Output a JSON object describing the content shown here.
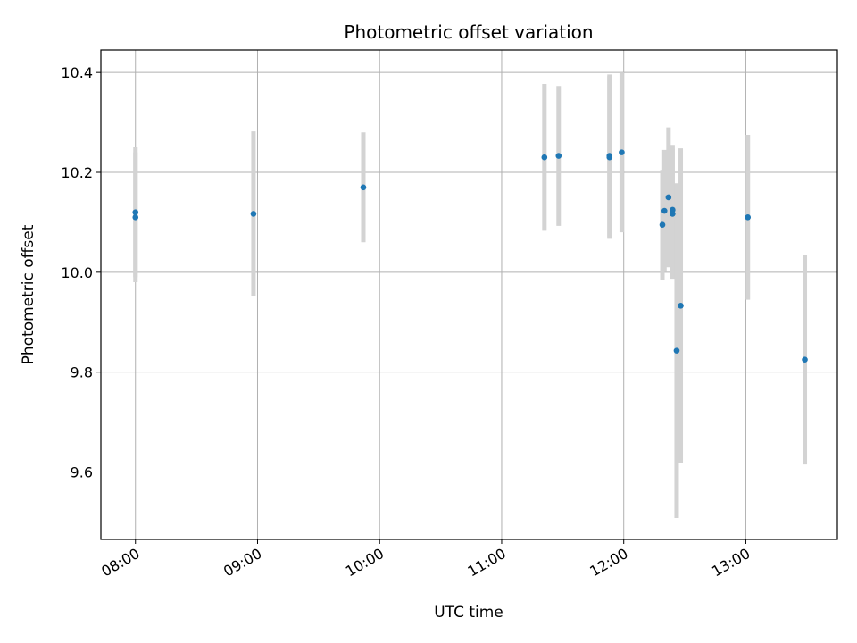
{
  "chart_data": {
    "type": "scatter",
    "title": "Photometric offset variation",
    "xlabel": "UTC time",
    "ylabel": "Photometric offset",
    "x_unit": "time (HH:MM UTC)",
    "xlim": [
      "07:43",
      "13:45"
    ],
    "ylim": [
      9.465,
      10.445
    ],
    "xticks": [
      "08:00",
      "09:00",
      "10:00",
      "11:00",
      "12:00",
      "13:00"
    ],
    "yticks": [
      "9.6",
      "9.8",
      "10.0",
      "10.2",
      "10.4"
    ],
    "grid": true,
    "legend": "none",
    "point_color": "#1f77b4",
    "errorbar_color": "#d3d3d3",
    "series": [
      {
        "points": [
          {
            "x": "08:00",
            "y": 10.12,
            "err": 0.13
          },
          {
            "x": "08:00",
            "y": 10.11,
            "err": 0.13
          },
          {
            "x": "08:58",
            "y": 10.117,
            "err": 0.165
          },
          {
            "x": "09:52",
            "y": 10.17,
            "err": 0.11
          },
          {
            "x": "11:21",
            "y": 10.23,
            "err": 0.147
          },
          {
            "x": "11:28",
            "y": 10.233,
            "err": 0.14
          },
          {
            "x": "11:53",
            "y": 10.233,
            "err": 0.163
          },
          {
            "x": "11:53",
            "y": 10.23,
            "err": 0.163
          },
          {
            "x": "11:59",
            "y": 10.24,
            "err": 0.16
          },
          {
            "x": "12:19",
            "y": 10.095,
            "err": 0.11
          },
          {
            "x": "12:20",
            "y": 10.123,
            "err": 0.122
          },
          {
            "x": "12:22",
            "y": 10.15,
            "err": 0.14
          },
          {
            "x": "12:24",
            "y": 10.125,
            "err": 0.13
          },
          {
            "x": "12:24",
            "y": 10.117,
            "err": 0.13
          },
          {
            "x": "12:26",
            "y": 9.843,
            "err": 0.335
          },
          {
            "x": "12:28",
            "y": 9.933,
            "err": 0.315
          },
          {
            "x": "13:01",
            "y": 10.11,
            "err": 0.165
          },
          {
            "x": "13:29",
            "y": 9.825,
            "err": 0.21
          }
        ]
      }
    ]
  }
}
